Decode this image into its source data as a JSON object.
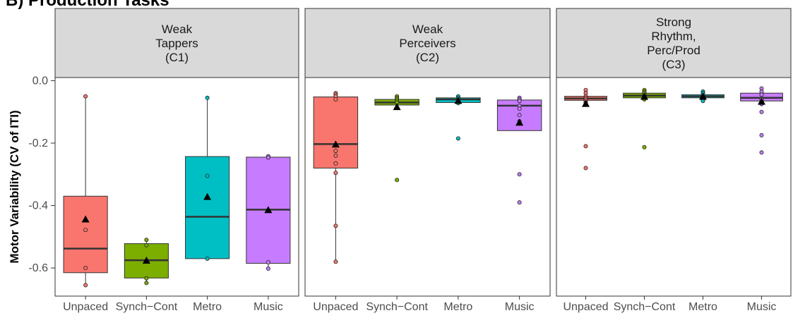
{
  "heading": "B) Production Tasks",
  "chart_data": {
    "type": "box",
    "ylabel": "Motor Variability (CV of ITI)",
    "ylim": [
      -0.69,
      0.01
    ],
    "yticks": [
      0.0,
      -0.2,
      -0.4,
      -0.6
    ],
    "ytick_labels": [
      "0.0",
      "-0.2",
      "-0.4",
      "-0.6"
    ],
    "categories": [
      "Unpaced",
      "Synch−Cont",
      "Metro",
      "Music"
    ],
    "colors": {
      "Unpaced": "#F8766D",
      "Synch−Cont": "#7CAE00",
      "Metro": "#00BFC4",
      "Music": "#C77CFF"
    },
    "facet_strip_color": "#d9d9d9",
    "grid": false,
    "panels": [
      {
        "strip": [
          "Weak",
          "Tappers",
          "(C1)"
        ],
        "boxes": [
          {
            "category": "Unpaced",
            "min": -0.655,
            "q1": -0.615,
            "median": -0.538,
            "q3": -0.37,
            "max": -0.05,
            "mean": -0.445,
            "points": [
              -0.05,
              -0.478,
              -0.6,
              -0.655
            ]
          },
          {
            "category": "Synch−Cont",
            "min": -0.648,
            "q1": -0.632,
            "median": -0.575,
            "q3": -0.522,
            "max": -0.51,
            "mean": -0.577,
            "points": [
              -0.51,
              -0.527,
              -0.633,
              -0.648
            ]
          },
          {
            "category": "Metro",
            "min": -0.57,
            "q1": -0.57,
            "median": -0.436,
            "q3": -0.243,
            "max": -0.055,
            "mean": -0.373,
            "points": [
              -0.055,
              -0.305,
              -0.57
            ]
          },
          {
            "category": "Music",
            "min": -0.602,
            "q1": -0.585,
            "median": -0.413,
            "q3": -0.245,
            "max": -0.242,
            "mean": -0.415,
            "points": [
              -0.242,
              -0.246,
              -0.582,
              -0.602
            ]
          }
        ]
      },
      {
        "strip": [
          "Weak",
          "Perceivers",
          "(C2)"
        ],
        "boxes": [
          {
            "category": "Unpaced",
            "min": -0.58,
            "q1": -0.28,
            "median": -0.203,
            "q3": -0.052,
            "max": -0.04,
            "mean": -0.205,
            "points": [
              -0.04,
              -0.045,
              -0.05,
              -0.06,
              -0.225,
              -0.24,
              -0.265,
              -0.295,
              -0.465,
              -0.58
            ]
          },
          {
            "category": "Synch−Cont",
            "min": -0.08,
            "q1": -0.078,
            "median": -0.07,
            "q3": -0.06,
            "max": -0.05,
            "mean": -0.085,
            "points": [
              -0.05,
              -0.055,
              -0.06,
              -0.065,
              -0.07,
              -0.318
            ]
          },
          {
            "category": "Metro",
            "min": -0.075,
            "q1": -0.07,
            "median": -0.06,
            "q3": -0.055,
            "max": -0.05,
            "mean": -0.065,
            "points": [
              -0.05,
              -0.055,
              -0.06,
              -0.065,
              -0.072,
              -0.185
            ]
          },
          {
            "category": "Music",
            "min": -0.16,
            "q1": -0.16,
            "median": -0.08,
            "q3": -0.062,
            "max": -0.055,
            "mean": -0.135,
            "points": [
              -0.055,
              -0.06,
              -0.065,
              -0.08,
              -0.09,
              -0.11,
              -0.13,
              -0.3,
              -0.39
            ]
          }
        ]
      },
      {
        "strip": [
          "Strong",
          "Rhythm,",
          "Perc/Prod",
          "(C3)"
        ],
        "boxes": [
          {
            "category": "Unpaced",
            "min": -0.07,
            "q1": -0.063,
            "median": -0.057,
            "q3": -0.05,
            "max": -0.03,
            "mean": -0.075,
            "points": [
              -0.03,
              -0.04,
              -0.05,
              -0.055,
              -0.06,
              -0.065,
              -0.07,
              -0.075,
              -0.21,
              -0.28
            ]
          },
          {
            "category": "Synch−Cont",
            "min": -0.062,
            "q1": -0.055,
            "median": -0.048,
            "q3": -0.04,
            "max": -0.03,
            "mean": -0.052,
            "points": [
              -0.03,
              -0.035,
              -0.04,
              -0.045,
              -0.05,
              -0.055,
              -0.06,
              -0.213
            ]
          },
          {
            "category": "Metro",
            "min": -0.065,
            "q1": -0.055,
            "median": -0.05,
            "q3": -0.045,
            "max": -0.035,
            "mean": -0.052,
            "points": [
              -0.035,
              -0.04,
              -0.045,
              -0.05,
              -0.055,
              -0.06,
              -0.065
            ]
          },
          {
            "category": "Music",
            "min": -0.07,
            "q1": -0.065,
            "median": -0.055,
            "q3": -0.04,
            "max": -0.025,
            "mean": -0.068,
            "points": [
              -0.025,
              -0.035,
              -0.045,
              -0.06,
              -0.075,
              -0.1,
              -0.175,
              -0.23
            ]
          }
        ]
      }
    ]
  }
}
